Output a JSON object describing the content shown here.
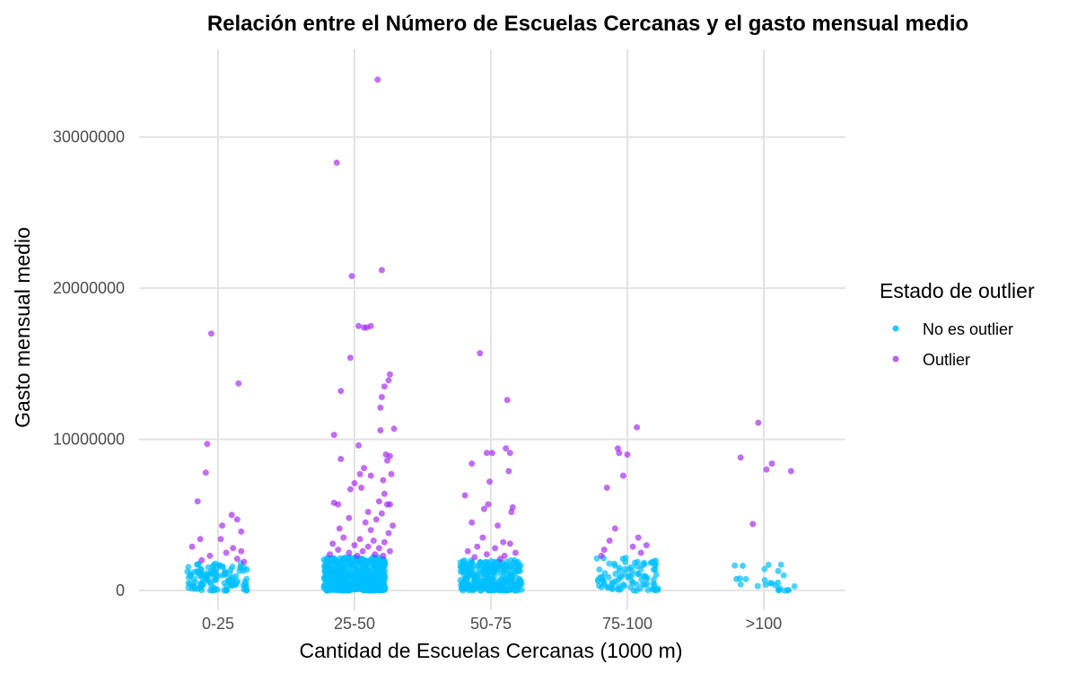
{
  "chart_data": {
    "type": "scatter",
    "title": "Relación entre el Número de Escuelas Cercanas y el gasto mensual medio",
    "xlabel": "Cantidad de Escuelas Cercanas (1000 m)",
    "ylabel": "Gasto mensual medio",
    "categories": [
      "0-25",
      "25-50",
      "50-75",
      "75-100",
      ">100"
    ],
    "y_ticks": [
      "0",
      "10000000",
      "20000000",
      "30000000"
    ],
    "ylim": [
      -1300000,
      35800000
    ],
    "grid": true,
    "legend": {
      "title": "Estado de outlier",
      "placement": "right",
      "entries": [
        "No es outlier",
        "Outlier"
      ]
    },
    "colors": {
      "No es outlier": "#00bfff",
      "Outlier": "#a020f0"
    },
    "outlier_thresholds": {
      "0-25": 1800000,
      "25-50": 2200000,
      "50-75": 2000000,
      "75-100": 2200000,
      ">100": 1800000
    },
    "non_outlier_summary": {
      "note_values_jittered": true,
      "0-25": {
        "count": 120,
        "max": 1800000
      },
      "25-50": {
        "count": 600,
        "max": 2200000
      },
      "50-75": {
        "count": 320,
        "max": 2000000
      },
      "75-100": {
        "count": 90,
        "max": 2200000
      },
      ">100": {
        "count": 25,
        "max": 1800000
      }
    },
    "series": [
      {
        "name": "Outlier",
        "points": [
          {
            "category": "0-25",
            "x": -0.05,
            "y": 17000000
          },
          {
            "category": "0-25",
            "x": 0.15,
            "y": 13700000
          },
          {
            "category": "0-25",
            "x": -0.08,
            "y": 9700000
          },
          {
            "category": "0-25",
            "x": -0.09,
            "y": 7800000
          },
          {
            "category": "0-25",
            "x": -0.15,
            "y": 5900000
          },
          {
            "category": "0-25",
            "x": 0.1,
            "y": 5000000
          },
          {
            "category": "0-25",
            "x": 0.14,
            "y": 4700000
          },
          {
            "category": "0-25",
            "x": 0.03,
            "y": 4300000
          },
          {
            "category": "0-25",
            "x": 0.17,
            "y": 3900000
          },
          {
            "category": "0-25",
            "x": -0.13,
            "y": 3400000
          },
          {
            "category": "0-25",
            "x": 0.02,
            "y": 3400000
          },
          {
            "category": "0-25",
            "x": -0.19,
            "y": 2900000
          },
          {
            "category": "0-25",
            "x": 0.11,
            "y": 2800000
          },
          {
            "category": "0-25",
            "x": 0.17,
            "y": 2600000
          },
          {
            "category": "0-25",
            "x": 0.06,
            "y": 2500000
          },
          {
            "category": "0-25",
            "x": -0.06,
            "y": 2300000
          },
          {
            "category": "0-25",
            "x": 0.14,
            "y": 2100000
          },
          {
            "category": "0-25",
            "x": -0.12,
            "y": 2000000
          },
          {
            "category": "0-25",
            "x": 0.19,
            "y": 1900000
          },
          {
            "category": "25-50",
            "x": 0.17,
            "y": 33800000
          },
          {
            "category": "25-50",
            "x": -0.13,
            "y": 28300000
          },
          {
            "category": "25-50",
            "x": 0.2,
            "y": 21200000
          },
          {
            "category": "25-50",
            "x": -0.02,
            "y": 20800000
          },
          {
            "category": "25-50",
            "x": 0.03,
            "y": 17500000
          },
          {
            "category": "25-50",
            "x": 0.12,
            "y": 17500000
          },
          {
            "category": "25-50",
            "x": 0.09,
            "y": 17400000
          },
          {
            "category": "25-50",
            "x": 0.07,
            "y": 17400000
          },
          {
            "category": "25-50",
            "x": -0.03,
            "y": 15400000
          },
          {
            "category": "25-50",
            "x": 0.26,
            "y": 14300000
          },
          {
            "category": "25-50",
            "x": 0.25,
            "y": 13900000
          },
          {
            "category": "25-50",
            "x": 0.22,
            "y": 13500000
          },
          {
            "category": "25-50",
            "x": 0.2,
            "y": 12800000
          },
          {
            "category": "25-50",
            "x": -0.1,
            "y": 13200000
          },
          {
            "category": "25-50",
            "x": 0.19,
            "y": 12100000
          },
          {
            "category": "25-50",
            "x": 0.19,
            "y": 10600000
          },
          {
            "category": "25-50",
            "x": 0.29,
            "y": 10700000
          },
          {
            "category": "25-50",
            "x": -0.15,
            "y": 10300000
          },
          {
            "category": "25-50",
            "x": 0.03,
            "y": 9600000
          },
          {
            "category": "25-50",
            "x": -0.1,
            "y": 8700000
          },
          {
            "category": "25-50",
            "x": 0.23,
            "y": 9000000
          },
          {
            "category": "25-50",
            "x": 0.26,
            "y": 8900000
          },
          {
            "category": "25-50",
            "x": 0.24,
            "y": 8600000
          },
          {
            "category": "25-50",
            "x": 0.07,
            "y": 8100000
          },
          {
            "category": "25-50",
            "x": 0.04,
            "y": 7700000
          },
          {
            "category": "25-50",
            "x": 0.12,
            "y": 7600000
          },
          {
            "category": "25-50",
            "x": 0.21,
            "y": 7300000
          },
          {
            "category": "25-50",
            "x": 0.27,
            "y": 7700000
          },
          {
            "category": "25-50",
            "x": 0.0,
            "y": 7100000
          },
          {
            "category": "25-50",
            "x": 0.05,
            "y": 6800000
          },
          {
            "category": "25-50",
            "x": -0.03,
            "y": 6700000
          },
          {
            "category": "25-50",
            "x": 0.22,
            "y": 6400000
          },
          {
            "category": "25-50",
            "x": -0.15,
            "y": 5800000
          },
          {
            "category": "25-50",
            "x": -0.12,
            "y": 5700000
          },
          {
            "category": "25-50",
            "x": 0.18,
            "y": 5900000
          },
          {
            "category": "25-50",
            "x": 0.26,
            "y": 5700000
          },
          {
            "category": "25-50",
            "x": 0.24,
            "y": 5700000
          },
          {
            "category": "25-50",
            "x": 0.1,
            "y": 5200000
          },
          {
            "category": "25-50",
            "x": 0.2,
            "y": 5100000
          },
          {
            "category": "25-50",
            "x": -0.04,
            "y": 4800000
          },
          {
            "category": "25-50",
            "x": 0.16,
            "y": 4700000
          },
          {
            "category": "25-50",
            "x": 0.08,
            "y": 4500000
          },
          {
            "category": "25-50",
            "x": 0.28,
            "y": 4300000
          },
          {
            "category": "25-50",
            "x": -0.11,
            "y": 4100000
          },
          {
            "category": "25-50",
            "x": 0.12,
            "y": 4000000
          },
          {
            "category": "25-50",
            "x": 0.25,
            "y": 3800000
          },
          {
            "category": "25-50",
            "x": -0.08,
            "y": 3500000
          },
          {
            "category": "25-50",
            "x": 0.04,
            "y": 3400000
          },
          {
            "category": "25-50",
            "x": 0.14,
            "y": 3300000
          },
          {
            "category": "25-50",
            "x": 0.22,
            "y": 3200000
          },
          {
            "category": "25-50",
            "x": -0.16,
            "y": 3100000
          },
          {
            "category": "25-50",
            "x": 0.0,
            "y": 3000000
          },
          {
            "category": "25-50",
            "x": 0.1,
            "y": 2900000
          },
          {
            "category": "25-50",
            "x": 0.18,
            "y": 2800000
          },
          {
            "category": "25-50",
            "x": -0.12,
            "y": 2700000
          },
          {
            "category": "25-50",
            "x": 0.06,
            "y": 2600000
          },
          {
            "category": "25-50",
            "x": 0.26,
            "y": 2600000
          },
          {
            "category": "25-50",
            "x": -0.04,
            "y": 2500000
          },
          {
            "category": "25-50",
            "x": 0.15,
            "y": 2400000
          },
          {
            "category": "25-50",
            "x": -0.18,
            "y": 2400000
          },
          {
            "category": "25-50",
            "x": 0.02,
            "y": 2300000
          },
          {
            "category": "25-50",
            "x": 0.21,
            "y": 2300000
          },
          {
            "category": "50-75",
            "x": -0.08,
            "y": 15700000
          },
          {
            "category": "50-75",
            "x": 0.12,
            "y": 12600000
          },
          {
            "category": "50-75",
            "x": 0.11,
            "y": 9400000
          },
          {
            "category": "50-75",
            "x": 0.14,
            "y": 9100000
          },
          {
            "category": "50-75",
            "x": -0.03,
            "y": 9100000
          },
          {
            "category": "50-75",
            "x": 0.01,
            "y": 9100000
          },
          {
            "category": "50-75",
            "x": -0.14,
            "y": 8400000
          },
          {
            "category": "50-75",
            "x": 0.13,
            "y": 7900000
          },
          {
            "category": "50-75",
            "x": -0.01,
            "y": 7200000
          },
          {
            "category": "50-75",
            "x": -0.19,
            "y": 6300000
          },
          {
            "category": "50-75",
            "x": -0.02,
            "y": 5700000
          },
          {
            "category": "50-75",
            "x": 0.16,
            "y": 5500000
          },
          {
            "category": "50-75",
            "x": -0.05,
            "y": 5400000
          },
          {
            "category": "50-75",
            "x": 0.15,
            "y": 5200000
          },
          {
            "category": "50-75",
            "x": -0.14,
            "y": 4500000
          },
          {
            "category": "50-75",
            "x": 0.05,
            "y": 4300000
          },
          {
            "category": "50-75",
            "x": -0.06,
            "y": 3500000
          },
          {
            "category": "50-75",
            "x": 0.09,
            "y": 3200000
          },
          {
            "category": "50-75",
            "x": 0.14,
            "y": 3100000
          },
          {
            "category": "50-75",
            "x": -0.1,
            "y": 2900000
          },
          {
            "category": "50-75",
            "x": 0.03,
            "y": 2800000
          },
          {
            "category": "50-75",
            "x": -0.17,
            "y": 2600000
          },
          {
            "category": "50-75",
            "x": 0.18,
            "y": 2500000
          },
          {
            "category": "50-75",
            "x": -0.03,
            "y": 2400000
          },
          {
            "category": "50-75",
            "x": 0.1,
            "y": 2300000
          },
          {
            "category": "50-75",
            "x": -0.12,
            "y": 2200000
          },
          {
            "category": "50-75",
            "x": 0.07,
            "y": 2100000
          },
          {
            "category": "75-100",
            "x": 0.07,
            "y": 10800000
          },
          {
            "category": "75-100",
            "x": -0.07,
            "y": 9400000
          },
          {
            "category": "75-100",
            "x": 0.0,
            "y": 9000000
          },
          {
            "category": "75-100",
            "x": -0.06,
            "y": 9100000
          },
          {
            "category": "75-100",
            "x": -0.03,
            "y": 7600000
          },
          {
            "category": "75-100",
            "x": -0.15,
            "y": 6800000
          },
          {
            "category": "75-100",
            "x": -0.09,
            "y": 4100000
          },
          {
            "category": "75-100",
            "x": 0.08,
            "y": 3500000
          },
          {
            "category": "75-100",
            "x": -0.13,
            "y": 3300000
          },
          {
            "category": "75-100",
            "x": 0.14,
            "y": 3000000
          },
          {
            "category": "75-100",
            "x": 0.04,
            "y": 2900000
          },
          {
            "category": "75-100",
            "x": -0.17,
            "y": 2700000
          },
          {
            "category": "75-100",
            "x": 0.1,
            "y": 2500000
          },
          {
            "category": "75-100",
            "x": -0.19,
            "y": 2300000
          },
          {
            "category": ">100",
            "x": -0.04,
            "y": 11100000
          },
          {
            "category": ">100",
            "x": -0.17,
            "y": 8800000
          },
          {
            "category": ">100",
            "x": 0.06,
            "y": 8400000
          },
          {
            "category": ">100",
            "x": 0.02,
            "y": 8000000
          },
          {
            "category": ">100",
            "x": 0.2,
            "y": 7900000
          },
          {
            "category": ">100",
            "x": -0.08,
            "y": 4400000
          }
        ]
      }
    ]
  }
}
